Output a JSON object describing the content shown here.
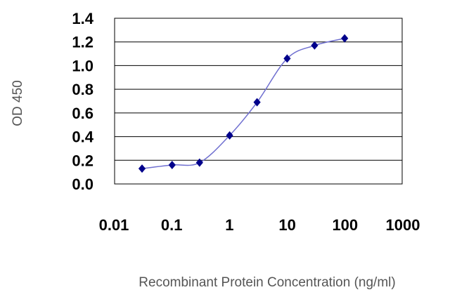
{
  "chart_data": {
    "type": "line",
    "xlabel": "Recombinant Protein Concentration (ng/ml)",
    "ylabel": "OD 450",
    "x_scale": "log",
    "xlim": [
      0.01,
      1000
    ],
    "ylim": [
      0.0,
      1.4
    ],
    "x_ticks": [
      "0.01",
      "0.1",
      "1",
      "10",
      "100",
      "1000"
    ],
    "y_ticks": [
      "0.0",
      "0.2",
      "0.4",
      "0.6",
      "0.8",
      "1.0",
      "1.2",
      "1.4"
    ],
    "grid": "horizontal",
    "series": [
      {
        "x": [
          0.03,
          0.1,
          0.3,
          1,
          3,
          10,
          30,
          100
        ],
        "y": [
          0.13,
          0.16,
          0.18,
          0.41,
          0.69,
          1.06,
          1.17,
          1.23
        ],
        "marker": "diamond",
        "color": "#00008b",
        "line_color": "#6f6fd0"
      }
    ]
  }
}
